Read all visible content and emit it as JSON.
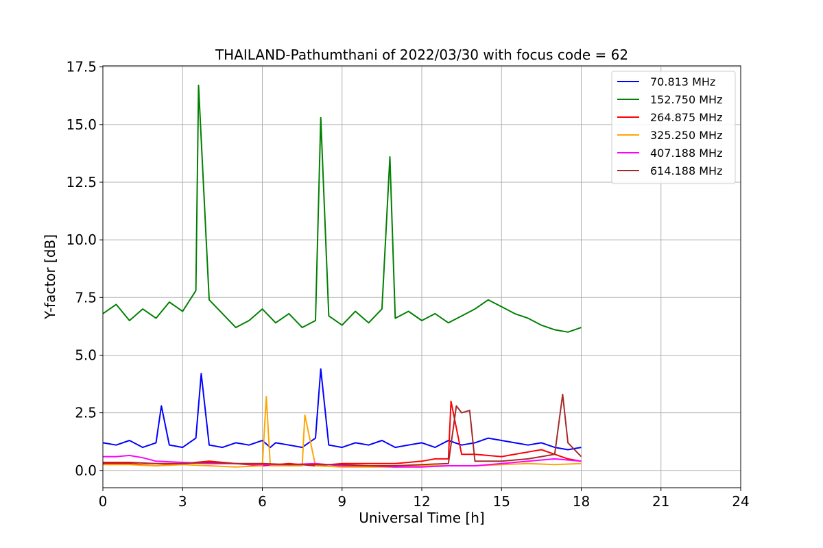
{
  "chart_data": {
    "type": "line",
    "title": "THAILAND-Pathumthani of 2022/03/30 with focus code = 62",
    "xlabel": "Universal Time [h]",
    "ylabel": "Y-factor [dB]",
    "xlim": [
      0,
      24
    ],
    "ylim": [
      -0.75,
      17.55
    ],
    "xticks": [
      0,
      3,
      6,
      9,
      12,
      15,
      18,
      21,
      24
    ],
    "yticks": [
      0.0,
      2.5,
      5.0,
      7.5,
      10.0,
      12.5,
      15.0,
      17.5
    ],
    "xtick_labels": [
      "0",
      "3",
      "6",
      "9",
      "12",
      "15",
      "18",
      "21",
      "24"
    ],
    "ytick_labels": [
      "0.0",
      "2.5",
      "5.0",
      "7.5",
      "10.0",
      "12.5",
      "15.0",
      "17.5"
    ],
    "grid": true,
    "legend_position": "top-right",
    "series": [
      {
        "name": " 70.813 MHz",
        "color": "#0000ff",
        "x": [
          0,
          0.5,
          1,
          1.5,
          2,
          2.2,
          2.5,
          3,
          3.5,
          3.7,
          4,
          4.5,
          5,
          5.5,
          6,
          6.3,
          6.5,
          7,
          7.5,
          8,
          8.2,
          8.5,
          9,
          9.5,
          10,
          10.5,
          11,
          11.5,
          12,
          12.5,
          13,
          13.5,
          14,
          14.5,
          15,
          15.5,
          16,
          16.5,
          17,
          17.5,
          18
        ],
        "values": [
          1.2,
          1.1,
          1.3,
          1.0,
          1.2,
          2.8,
          1.1,
          1.0,
          1.4,
          4.2,
          1.1,
          1.0,
          1.2,
          1.1,
          1.3,
          1.0,
          1.2,
          1.1,
          1.0,
          1.4,
          4.4,
          1.1,
          1.0,
          1.2,
          1.1,
          1.3,
          1.0,
          1.1,
          1.2,
          1.0,
          1.3,
          1.1,
          1.2,
          1.4,
          1.3,
          1.2,
          1.1,
          1.2,
          1.0,
          0.9,
          1.0
        ]
      },
      {
        "name": "152.750 MHz",
        "color": "#008000",
        "x": [
          0,
          0.5,
          1,
          1.5,
          2,
          2.5,
          3,
          3.5,
          3.6,
          4,
          4.5,
          5,
          5.5,
          6,
          6.5,
          7,
          7.5,
          8,
          8.2,
          8.5,
          9,
          9.5,
          10,
          10.5,
          10.8,
          11,
          11.5,
          12,
          12.5,
          13,
          13.5,
          14,
          14.5,
          15,
          15.5,
          16,
          16.5,
          17,
          17.5,
          18
        ],
        "values": [
          6.8,
          7.2,
          6.5,
          7.0,
          6.6,
          7.3,
          6.9,
          7.8,
          16.7,
          7.4,
          6.8,
          6.2,
          6.5,
          7.0,
          6.4,
          6.8,
          6.2,
          6.5,
          15.3,
          6.7,
          6.3,
          6.9,
          6.4,
          7.0,
          13.6,
          6.6,
          6.9,
          6.5,
          6.8,
          6.4,
          6.7,
          7.0,
          7.4,
          7.1,
          6.8,
          6.6,
          6.3,
          6.1,
          6.0,
          6.2
        ]
      },
      {
        "name": "264.875 MHz",
        "color": "#ff0000",
        "x": [
          0,
          1,
          2,
          3,
          4,
          5,
          6,
          7,
          8,
          9,
          10,
          11,
          12,
          12.5,
          13,
          13.1,
          13.5,
          14,
          15,
          16,
          16.5,
          17,
          17.5,
          18
        ],
        "values": [
          0.3,
          0.3,
          0.2,
          0.3,
          0.4,
          0.3,
          0.2,
          0.3,
          0.2,
          0.3,
          0.3,
          0.3,
          0.4,
          0.5,
          0.5,
          3.0,
          0.7,
          0.7,
          0.6,
          0.8,
          0.9,
          0.7,
          0.5,
          0.4
        ]
      },
      {
        "name": "325.250 MHz",
        "color": "#ffa500",
        "x": [
          0,
          1,
          2,
          3,
          4,
          5,
          6,
          6.15,
          6.3,
          7,
          7.5,
          7.6,
          8,
          9,
          10,
          11,
          12,
          13,
          14,
          15,
          16,
          17,
          18
        ],
        "values": [
          0.25,
          0.25,
          0.2,
          0.25,
          0.2,
          0.15,
          0.2,
          3.2,
          0.2,
          0.2,
          0.2,
          2.4,
          0.2,
          0.15,
          0.15,
          0.15,
          0.2,
          0.2,
          0.2,
          0.25,
          0.3,
          0.25,
          0.3
        ]
      },
      {
        "name": "407.188 MHz",
        "color": "#ff00ff",
        "x": [
          0,
          0.5,
          1,
          1.5,
          2,
          3,
          4,
          5,
          6,
          7,
          8,
          9,
          10,
          11,
          12,
          13,
          14,
          15,
          16,
          17,
          18
        ],
        "values": [
          0.6,
          0.6,
          0.65,
          0.55,
          0.4,
          0.35,
          0.3,
          0.3,
          0.25,
          0.25,
          0.3,
          0.2,
          0.2,
          0.15,
          0.15,
          0.2,
          0.2,
          0.3,
          0.4,
          0.5,
          0.4
        ]
      },
      {
        "name": "614.188 MHz",
        "color": "#a52a2a",
        "x": [
          0,
          1,
          2,
          3,
          4,
          5,
          6,
          7,
          8,
          9,
          10,
          11,
          12,
          13,
          13.3,
          13.5,
          13.8,
          14,
          15,
          16,
          16.5,
          17,
          17.3,
          17.5,
          18
        ],
        "values": [
          0.35,
          0.35,
          0.3,
          0.3,
          0.35,
          0.3,
          0.3,
          0.25,
          0.25,
          0.25,
          0.2,
          0.2,
          0.25,
          0.3,
          2.8,
          2.5,
          2.6,
          0.4,
          0.4,
          0.5,
          0.6,
          0.7,
          3.3,
          1.2,
          0.6
        ]
      }
    ]
  }
}
